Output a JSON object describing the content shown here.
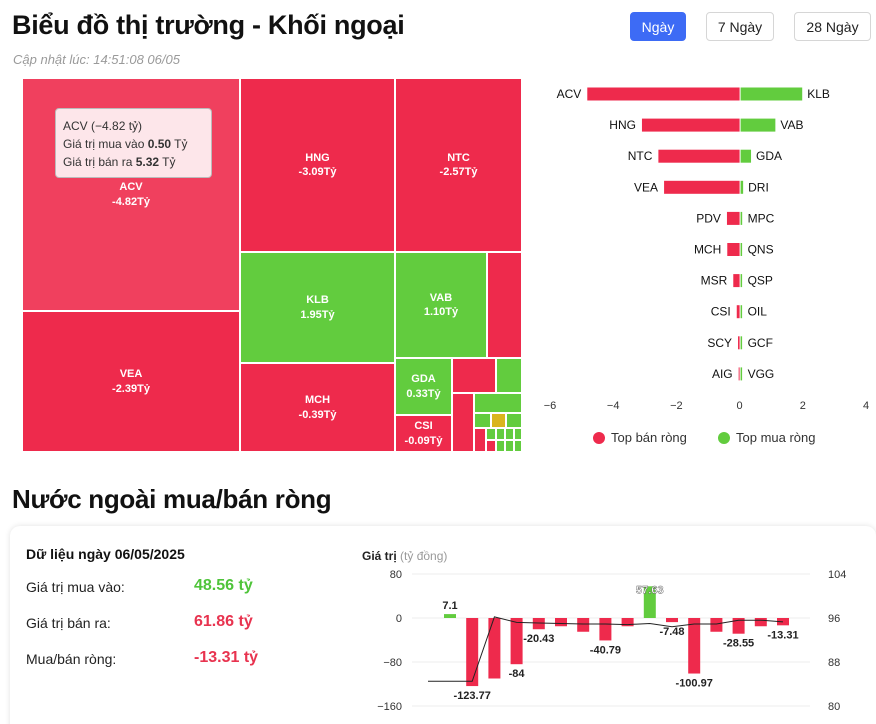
{
  "header": {
    "title": "Biểu đồ thị trường - Khối ngoại",
    "updated": "Cập nhật lúc: 14:51:08 06/05",
    "tabs": [
      {
        "label": "Ngày",
        "active": true
      },
      {
        "label": "7 Ngày",
        "active": false
      },
      {
        "label": "28 Ngày",
        "active": false
      }
    ]
  },
  "treemap": {
    "cells": [
      {
        "ticker": "ACV",
        "value": "-4.82Tỷ",
        "color": "red"
      },
      {
        "ticker": "HNG",
        "value": "-3.09Tỷ",
        "color": "red"
      },
      {
        "ticker": "NTC",
        "value": "-2.57Tỷ",
        "color": "red"
      },
      {
        "ticker": "KLB",
        "value": "1.95Tỷ",
        "color": "green"
      },
      {
        "ticker": "VAB",
        "value": "1.10Tỷ",
        "color": "green"
      },
      {
        "ticker": "VEA",
        "value": "-2.39Tỷ",
        "color": "red"
      },
      {
        "ticker": "MCH",
        "value": "-0.39Tỷ",
        "color": "red"
      },
      {
        "ticker": "GDA",
        "value": "0.33Tỷ",
        "color": "green"
      },
      {
        "ticker": "CSI",
        "value": "-0.09Tỷ",
        "color": "red"
      }
    ],
    "tooltip": {
      "line1": "ACV (−4.82 tỷ)",
      "buy_label": "Giá trị mua vào ",
      "buy_value": "0.50",
      "buy_unit": " Tỷ",
      "sell_label": "Giá trị bán ra ",
      "sell_value": "5.32",
      "sell_unit": " Tỷ"
    }
  },
  "chart_data": [
    {
      "type": "bar",
      "orientation": "horizontal",
      "title": "",
      "sell_tickers": [
        "ACV",
        "HNG",
        "NTC",
        "VEA",
        "PDV",
        "MCH",
        "MSR",
        "CSI",
        "SCY",
        "AIG"
      ],
      "sell_values": [
        -4.82,
        -3.09,
        -2.57,
        -2.39,
        -0.4,
        -0.39,
        -0.2,
        -0.09,
        -0.05,
        -0.03
      ],
      "buy_tickers": [
        "KLB",
        "VAB",
        "GDA",
        "DRI",
        "MPC",
        "QNS",
        "QSP",
        "OIL",
        "GCF",
        "VGG"
      ],
      "buy_values": [
        1.95,
        1.1,
        0.33,
        0.08,
        0.05,
        0.04,
        0.03,
        0.02,
        0.01,
        0.01
      ],
      "xlim": [
        -6,
        4
      ],
      "xticks": [
        "−6",
        "−4",
        "−2",
        "0",
        "2",
        "4"
      ],
      "legend": [
        {
          "name": "Top bán ròng",
          "color": "#ee2a4c"
        },
        {
          "name": "Top mua ròng",
          "color": "#62cc3e"
        }
      ],
      "legend_position": "bottom"
    },
    {
      "type": "bar",
      "title": "Giá trị",
      "ylabel": "(tỷ đồng)",
      "ylim": [
        -160,
        80
      ],
      "yticks": [
        "80",
        "0",
        "−80",
        "−160"
      ],
      "y2lim": [
        80,
        104
      ],
      "y2ticks": [
        "104",
        "96",
        "88",
        "80"
      ],
      "values": [
        7.1,
        -123.77,
        -110,
        -84,
        -20.43,
        -15,
        -25,
        -40.79,
        -15,
        57.63,
        -7.48,
        -100.97,
        -25,
        -28.55,
        -15,
        -13.31
      ],
      "data_labels": [
        {
          "i": 0,
          "text": "7.1"
        },
        {
          "i": 1,
          "text": "-123.77"
        },
        {
          "i": 3,
          "text": "-84"
        },
        {
          "i": 4,
          "text": "-20.43"
        },
        {
          "i": 7,
          "text": "-40.79"
        },
        {
          "i": 9,
          "text": "57.63"
        },
        {
          "i": 10,
          "text": "-7.48"
        },
        {
          "i": 11,
          "text": "-100.97"
        },
        {
          "i": 13,
          "text": "-28.55"
        },
        {
          "i": 15,
          "text": "-13.31"
        }
      ],
      "line_values": [
        84.5,
        84.5,
        96.2,
        95.2,
        95.1,
        95.0,
        94.9,
        94.9,
        94.8,
        95.0,
        94.4,
        94.9,
        94.9,
        95.6,
        95.6,
        95.3
      ]
    }
  ],
  "section2": {
    "title": "Nước ngoài mua/bán ròng",
    "date_head": "Dữ liệu ngày 06/05/2025",
    "rows": [
      {
        "label": "Giá trị mua vào:",
        "value": "48.56 tỷ",
        "color": "#4fc43a"
      },
      {
        "label": "Giá trị bán ra:",
        "value": "61.86 tỷ",
        "color": "#e8334f"
      },
      {
        "label": "Mua/bán ròng:",
        "value": "-13.31 tỷ",
        "color": "#e8334f"
      }
    ],
    "chart_head": "Giá trị",
    "chart_unit": "(tỷ đồng)"
  },
  "colors": {
    "red": "#ee2a4c",
    "green": "#62cc3e",
    "blue": "#3d6bf5"
  }
}
